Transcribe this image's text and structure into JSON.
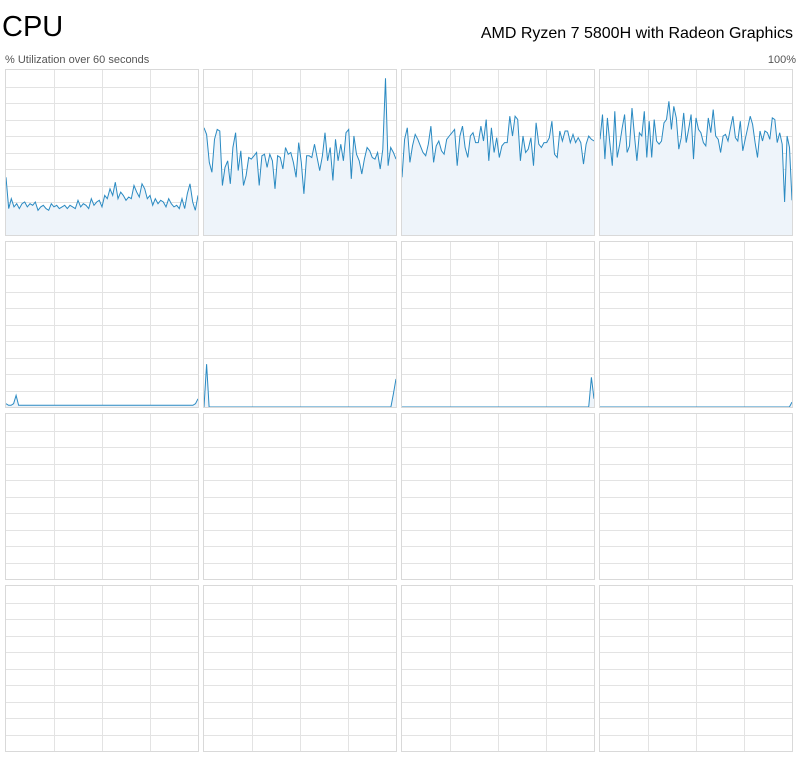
{
  "header": {
    "title": "CPU",
    "processor": "AMD Ryzen 7 5800H with Radeon Graphics",
    "utilization_label": "% Utilization over 60 seconds",
    "max_label": "100%"
  },
  "colors": {
    "line": "#2a8ac2",
    "fill": "#eef4fa",
    "grid": "#e3e3e3",
    "border": "#d9d9d9"
  },
  "chart_data": {
    "type": "area",
    "title": "",
    "xlabel": "",
    "ylabel": "% Utilization over 60 seconds",
    "ylim": [
      0,
      100
    ],
    "grid": true,
    "series": [
      {
        "values": [
          35,
          16,
          22,
          17,
          19,
          16,
          19,
          20,
          17,
          19,
          18,
          20,
          15,
          17,
          18,
          16,
          15,
          19,
          17,
          18,
          16,
          17,
          18,
          16,
          18,
          17,
          16,
          21,
          17,
          19,
          18,
          16,
          22,
          18,
          20,
          21,
          17,
          24,
          22,
          28,
          24,
          32,
          22,
          26,
          24,
          21,
          23,
          22,
          30,
          26,
          23,
          31,
          28,
          22,
          24,
          18,
          22,
          19,
          21,
          20,
          17,
          22,
          19,
          17,
          18,
          16,
          22,
          16,
          25,
          31,
          20,
          15,
          24
        ]
      },
      {
        "values": [
          65,
          61,
          44,
          38,
          58,
          64,
          63,
          30,
          41,
          45,
          31,
          53,
          62,
          39,
          51,
          30,
          36,
          47,
          46,
          48,
          50,
          30,
          48,
          49,
          41,
          49,
          45,
          28,
          48,
          47,
          40,
          53,
          49,
          50,
          44,
          35,
          56,
          44,
          25,
          48,
          48,
          47,
          55,
          47,
          39,
          48,
          62,
          45,
          53,
          33,
          58,
          45,
          55,
          45,
          62,
          64,
          34,
          60,
          49,
          45,
          37,
          46,
          53,
          51,
          47,
          46,
          50,
          40,
          52,
          95,
          42,
          53,
          50,
          46
        ]
      },
      {
        "values": [
          35,
          58,
          65,
          44,
          54,
          61,
          58,
          54,
          50,
          48,
          55,
          66,
          44,
          54,
          57,
          51,
          49,
          58,
          60,
          62,
          64,
          42,
          60,
          66,
          53,
          47,
          60,
          62,
          56,
          56,
          66,
          57,
          70,
          45,
          65,
          50,
          59,
          47,
          54,
          56,
          56,
          72,
          60,
          72,
          70,
          45,
          60,
          50,
          52,
          59,
          42,
          68,
          55,
          53,
          56,
          56,
          59,
          69,
          49,
          47,
          63,
          57,
          63,
          63,
          56,
          61,
          56,
          59,
          56,
          43,
          55,
          60,
          58,
          57
        ]
      },
      {
        "values": [
          58,
          73,
          46,
          71,
          56,
          42,
          75,
          47,
          55,
          65,
          73,
          50,
          54,
          77,
          60,
          45,
          62,
          60,
          75,
          47,
          69,
          47,
          70,
          57,
          55,
          57,
          68,
          70,
          81,
          64,
          78,
          71,
          52,
          59,
          74,
          56,
          64,
          73,
          46,
          71,
          64,
          62,
          56,
          54,
          71,
          62,
          76,
          60,
          58,
          50,
          60,
          61,
          57,
          65,
          72,
          59,
          57,
          69,
          51,
          58,
          65,
          72,
          67,
          56,
          47,
          63,
          57,
          63,
          62,
          58,
          71,
          70,
          56,
          62,
          55,
          20,
          60,
          53,
          21
        ]
      },
      {
        "values": [
          2,
          1,
          1,
          2,
          7,
          1,
          1,
          1,
          1,
          1,
          1,
          1,
          1,
          1,
          1,
          1,
          1,
          1,
          1,
          1,
          1,
          1,
          1,
          1,
          1,
          1,
          1,
          1,
          1,
          1,
          1,
          1,
          1,
          1,
          1,
          1,
          1,
          1,
          1,
          1,
          1,
          1,
          1,
          1,
          1,
          1,
          1,
          1,
          1,
          1,
          1,
          1,
          1,
          1,
          1,
          1,
          1,
          1,
          1,
          1,
          1,
          1,
          1,
          1,
          1,
          1,
          1,
          1,
          1,
          1,
          1,
          1,
          1,
          1,
          1,
          2,
          5
        ]
      },
      {
        "values": [
          0,
          26,
          0,
          0,
          0,
          0,
          0,
          0,
          0,
          0,
          0,
          0,
          0,
          0,
          0,
          0,
          0,
          0,
          0,
          0,
          0,
          0,
          0,
          0,
          0,
          0,
          0,
          0,
          0,
          0,
          0,
          0,
          0,
          0,
          0,
          0,
          0,
          0,
          0,
          0,
          0,
          0,
          0,
          0,
          0,
          0,
          0,
          0,
          0,
          0,
          0,
          0,
          0,
          0,
          0,
          0,
          0,
          0,
          0,
          0,
          0,
          0,
          0,
          0,
          0,
          0,
          0,
          0,
          0,
          0,
          0,
          0,
          0,
          0,
          8,
          17
        ]
      },
      {
        "values": [
          0,
          0,
          0,
          0,
          0,
          0,
          0,
          0,
          0,
          0,
          0,
          0,
          0,
          0,
          0,
          0,
          0,
          0,
          0,
          0,
          0,
          0,
          0,
          0,
          0,
          0,
          0,
          0,
          0,
          0,
          0,
          0,
          0,
          0,
          0,
          0,
          0,
          0,
          0,
          0,
          0,
          0,
          0,
          0,
          0,
          0,
          0,
          0,
          0,
          0,
          0,
          0,
          0,
          0,
          0,
          0,
          0,
          0,
          0,
          0,
          0,
          0,
          0,
          0,
          0,
          0,
          0,
          0,
          0,
          0,
          0,
          0,
          18,
          5
        ]
      },
      {
        "values": [
          0,
          0,
          0,
          0,
          0,
          0,
          0,
          0,
          0,
          0,
          0,
          0,
          0,
          0,
          0,
          0,
          0,
          0,
          0,
          0,
          0,
          0,
          0,
          0,
          0,
          0,
          0,
          0,
          0,
          0,
          0,
          0,
          0,
          0,
          0,
          0,
          0,
          0,
          0,
          0,
          0,
          0,
          0,
          0,
          0,
          0,
          0,
          0,
          0,
          0,
          0,
          0,
          0,
          0,
          0,
          0,
          0,
          0,
          0,
          0,
          0,
          0,
          0,
          0,
          0,
          0,
          0,
          0,
          0,
          0,
          0,
          0,
          0,
          3
        ]
      },
      {
        "values": []
      },
      {
        "values": []
      },
      {
        "values": []
      },
      {
        "values": []
      },
      {
        "values": []
      },
      {
        "values": []
      },
      {
        "values": []
      },
      {
        "values": []
      }
    ]
  }
}
